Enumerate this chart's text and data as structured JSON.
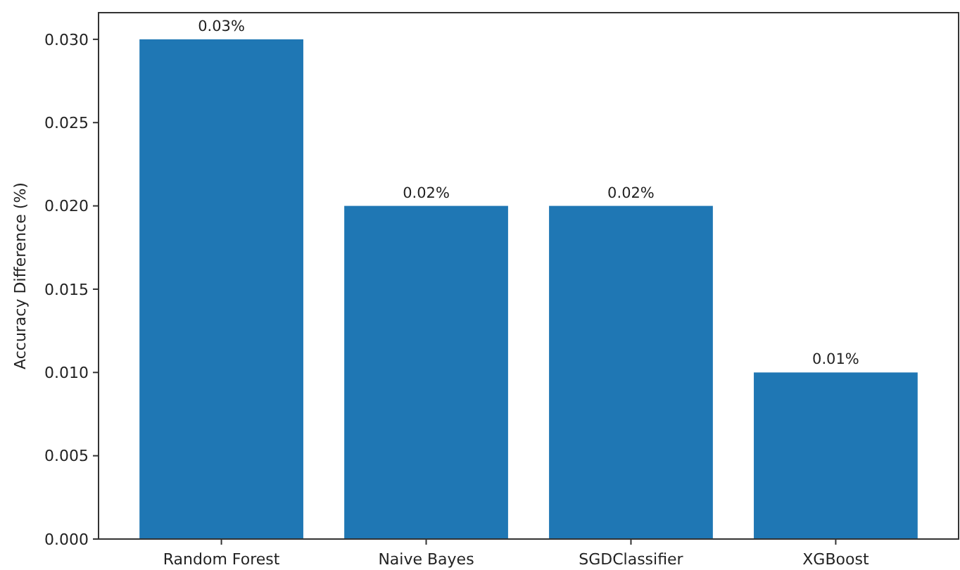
{
  "chart_data": {
    "type": "bar",
    "ylabel": "Accuracy Difference (%)",
    "categories": [
      "Random Forest",
      "Naive Bayes",
      "SGDClassifier",
      "XGBoost"
    ],
    "values": [
      0.03,
      0.02,
      0.02,
      0.01
    ],
    "value_labels": [
      "0.03%",
      "0.02%",
      "0.02%",
      "0.01%"
    ],
    "color": "#1f77b4",
    "ylim": [
      0,
      0.0316
    ],
    "yticks": [
      {
        "value": 0,
        "label": "0.000"
      },
      {
        "value": 0.005,
        "label": "0.005"
      },
      {
        "value": 0.01,
        "label": "0.010"
      },
      {
        "value": 0.015,
        "label": "0.015"
      },
      {
        "value": 0.02,
        "label": "0.020"
      },
      {
        "value": 0.025,
        "label": "0.025"
      },
      {
        "value": 0.03,
        "label": "0.030"
      }
    ],
    "grid": false
  }
}
